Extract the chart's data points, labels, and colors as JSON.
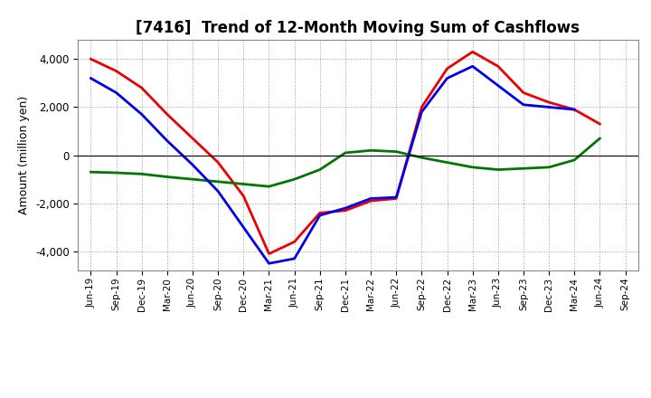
{
  "title": "[7416]  Trend of 12-Month Moving Sum of Cashflows",
  "ylabel": "Amount (million yen)",
  "x_labels": [
    "Jun-19",
    "Sep-19",
    "Dec-19",
    "Mar-20",
    "Jun-20",
    "Sep-20",
    "Dec-20",
    "Mar-21",
    "Jun-21",
    "Sep-21",
    "Dec-21",
    "Mar-22",
    "Jun-22",
    "Sep-22",
    "Dec-22",
    "Mar-23",
    "Jun-23",
    "Sep-23",
    "Dec-23",
    "Mar-24",
    "Jun-24",
    "Sep-24"
  ],
  "operating_cashflow": [
    4000,
    3500,
    2800,
    1700,
    700,
    -300,
    -1700,
    -4100,
    -3600,
    -2400,
    -2300,
    -1900,
    -1800,
    2000,
    3600,
    4300,
    3700,
    2600,
    2200,
    1900,
    1300,
    null
  ],
  "investing_cashflow": [
    -700,
    -730,
    -780,
    -900,
    -1000,
    -1100,
    -1200,
    -1300,
    -1000,
    -600,
    100,
    200,
    150,
    -100,
    -300,
    -500,
    -600,
    -550,
    -500,
    -200,
    700,
    null
  ],
  "free_cashflow": [
    3200,
    2600,
    1700,
    600,
    -400,
    -1500,
    -3000,
    -4500,
    -4300,
    -2500,
    -2200,
    -1800,
    -1750,
    1800,
    3200,
    3700,
    2900,
    2100,
    2000,
    1900,
    null,
    null
  ],
  "operating_color": "#ee0000",
  "investing_color": "#007700",
  "free_color": "#0000ee",
  "ylim": [
    -4800,
    4800
  ],
  "yticks": [
    -4000,
    -2000,
    0,
    2000,
    4000
  ],
  "background_color": "#ffffff",
  "grid_color": "#999999",
  "linewidth": 2.0
}
